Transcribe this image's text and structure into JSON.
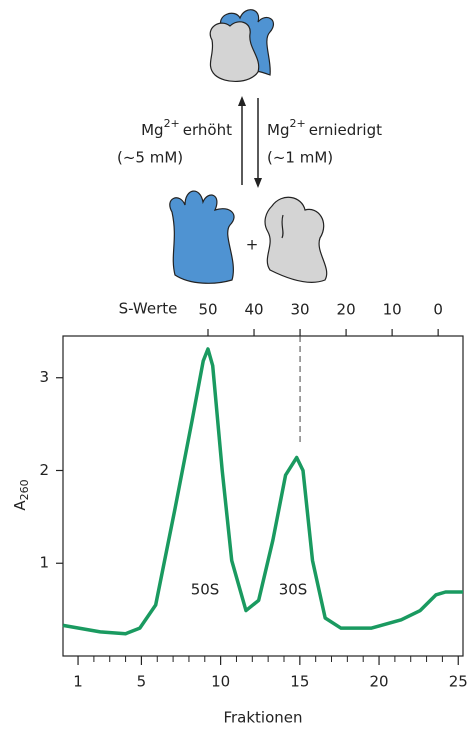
{
  "diagram": {
    "up_label": {
      "base": "Mg",
      "sup": "2+",
      "rest": "erhöht",
      "conc": "(~5 mM)"
    },
    "down_label": {
      "base": "Mg",
      "sup": "2+",
      "rest": "erniedrigt",
      "conc": "(~1 mM)"
    },
    "plus": "+"
  },
  "chart_data": {
    "type": "line",
    "xlabel": "Fraktionen",
    "ylabel": "A",
    "ylabel_sub": "260",
    "x2label": "S-Werte",
    "x": [
      0.05,
      2.4,
      4.0,
      4.9,
      5.9,
      7.1,
      8.2,
      8.9,
      9.2,
      9.5,
      10.1,
      10.7,
      11.6,
      12.4,
      13.3,
      14.1,
      14.8,
      15.2,
      15.8,
      16.6,
      17.6,
      19.5,
      21.4,
      22.6,
      23.6,
      24.2,
      25.3
    ],
    "series": [
      {
        "color": "#1a9a60",
        "values": [
          0.33,
          0.26,
          0.24,
          0.3,
          0.55,
          1.57,
          2.54,
          3.18,
          3.31,
          3.13,
          2.0,
          1.03,
          0.49,
          0.6,
          1.25,
          1.95,
          2.14,
          2.0,
          1.03,
          0.41,
          0.3,
          0.3,
          0.39,
          0.49,
          0.66,
          0.69,
          0.69
        ]
      }
    ],
    "xlim": [
      0.05,
      25.3
    ],
    "xticks": [
      1,
      5,
      10,
      15,
      20,
      25
    ],
    "xminorticks": [
      2,
      3,
      4,
      6,
      7,
      8,
      9,
      11,
      12,
      13,
      14,
      16,
      17,
      18,
      19,
      21,
      22,
      23,
      24
    ],
    "ylim": [
      0,
      3.45
    ],
    "yticks": [
      1,
      2,
      3
    ],
    "x2lim": [
      81.5,
      -5.4
    ],
    "x2ticks": [
      50,
      40,
      30,
      20,
      10,
      0
    ],
    "annotations": [
      "50S",
      "30S"
    ]
  }
}
